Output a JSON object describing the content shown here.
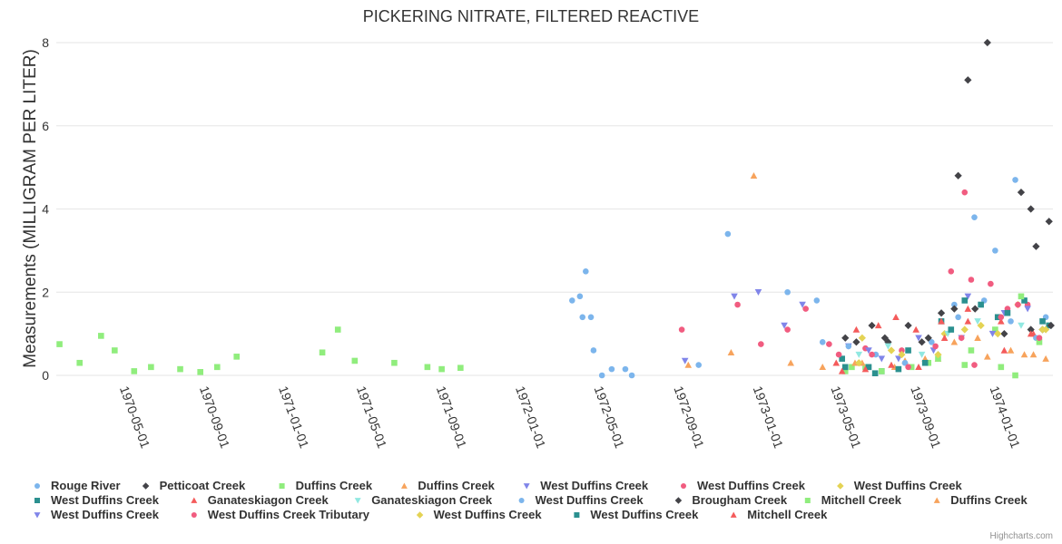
{
  "chart_data": {
    "type": "scatter",
    "title": "PICKERING NITRATE, FILTERED REACTIVE",
    "ylabel": "Measurements (MILLIGRAM PER LITER)",
    "xlabel": "",
    "ylim": [
      0,
      8
    ],
    "yticks": [
      "0",
      "2",
      "4",
      "6",
      "8"
    ],
    "xlim": [
      "1970-01-15",
      "1974-03-31"
    ],
    "xticks": [
      "1970-05-01",
      "1970-09-01",
      "1971-01-01",
      "1971-05-01",
      "1971-09-01",
      "1972-01-01",
      "1972-05-01",
      "1972-09-01",
      "1973-01-01",
      "1973-05-01",
      "1973-09-01",
      "1974-01-01"
    ],
    "credits": "Highcharts.com",
    "series": [
      {
        "name": "Rouge River",
        "color": "#7cb5ec",
        "symbol": "circle",
        "points": [
          [
            "1972-03-20",
            1.8
          ],
          [
            "1972-04-01",
            1.9
          ],
          [
            "1972-04-05",
            1.4
          ],
          [
            "1972-04-10",
            2.5
          ],
          [
            "1972-04-18",
            1.4
          ],
          [
            "1972-04-22",
            0.6
          ],
          [
            "1972-05-05",
            0.0
          ],
          [
            "1972-05-20",
            0.15
          ],
          [
            "1972-06-10",
            0.15
          ],
          [
            "1972-06-20",
            0.0
          ],
          [
            "1972-10-01",
            0.25
          ],
          [
            "1972-11-15",
            3.4
          ],
          [
            "1973-02-15",
            2.0
          ],
          [
            "1973-04-01",
            1.8
          ],
          [
            "1973-04-10",
            0.8
          ],
          [
            "1973-10-30",
            1.7
          ],
          [
            "1973-11-30",
            3.8
          ],
          [
            "1974-01-01",
            3.0
          ],
          [
            "1974-02-01",
            4.7
          ],
          [
            "1974-03-20",
            1.4
          ]
        ]
      },
      {
        "name": "Petticoat Creek",
        "color": "#434348",
        "symbol": "diamond",
        "points": [
          [
            "1973-05-15",
            0.9
          ],
          [
            "1973-06-25",
            1.2
          ],
          [
            "1973-07-20",
            0.8
          ],
          [
            "1973-08-20",
            1.2
          ],
          [
            "1973-09-10",
            0.8
          ],
          [
            "1973-10-10",
            1.5
          ],
          [
            "1973-11-05",
            4.8
          ],
          [
            "1973-11-20",
            7.1
          ],
          [
            "1973-12-20",
            8.0
          ],
          [
            "1974-02-10",
            4.4
          ],
          [
            "1974-02-25",
            4.0
          ],
          [
            "1974-03-05",
            3.1
          ],
          [
            "1974-03-25",
            3.7
          ],
          [
            "1974-03-15",
            1.1
          ]
        ]
      },
      {
        "name": "Duffins Creek",
        "color": "#90ed7d",
        "symbol": "square",
        "points": [
          [
            "1970-01-20",
            0.75
          ],
          [
            "1970-02-20",
            0.3
          ],
          [
            "1970-03-25",
            0.95
          ],
          [
            "1970-04-15",
            0.6
          ],
          [
            "1970-05-15",
            0.1
          ],
          [
            "1970-06-10",
            0.2
          ],
          [
            "1970-07-25",
            0.15
          ],
          [
            "1970-08-25",
            0.08
          ],
          [
            "1970-09-20",
            0.2
          ],
          [
            "1970-10-20",
            0.45
          ],
          [
            "1971-03-01",
            0.55
          ],
          [
            "1971-03-25",
            1.1
          ],
          [
            "1971-04-20",
            0.35
          ],
          [
            "1971-06-20",
            0.3
          ],
          [
            "1971-08-10",
            0.2
          ],
          [
            "1971-09-01",
            0.15
          ],
          [
            "1971-09-30",
            0.18
          ],
          [
            "1973-05-15",
            0.1
          ],
          [
            "1973-06-15",
            0.2
          ],
          [
            "1973-09-20",
            0.3
          ],
          [
            "1973-11-15",
            0.25
          ],
          [
            "1974-01-10",
            0.2
          ],
          [
            "1974-02-01",
            0.0
          ]
        ]
      },
      {
        "name": "Duffins Creek",
        "color": "#f7a35c",
        "symbol": "triangle",
        "points": [
          [
            "1972-09-15",
            0.25
          ],
          [
            "1972-11-20",
            0.55
          ],
          [
            "1972-12-25",
            4.8
          ],
          [
            "1973-02-20",
            0.3
          ],
          [
            "1973-04-10",
            0.2
          ],
          [
            "1973-06-10",
            0.3
          ],
          [
            "1973-08-15",
            0.35
          ],
          [
            "1973-10-05",
            0.4
          ],
          [
            "1973-12-20",
            0.45
          ],
          [
            "1974-02-15",
            0.5
          ],
          [
            "1974-03-20",
            0.4
          ]
        ]
      },
      {
        "name": "West Duffins Creek",
        "color": "#8085e9",
        "symbol": "triangle-down",
        "points": [
          [
            "1972-09-10",
            0.35
          ],
          [
            "1972-11-25",
            1.9
          ],
          [
            "1973-01-01",
            2.0
          ],
          [
            "1973-02-10",
            1.2
          ],
          [
            "1973-03-10",
            1.7
          ],
          [
            "1973-05-20",
            0.7
          ],
          [
            "1973-07-10",
            0.4
          ],
          [
            "1973-09-05",
            0.9
          ],
          [
            "1973-11-20",
            1.9
          ],
          [
            "1974-01-15",
            1.5
          ]
        ]
      },
      {
        "name": "West Duffins Creek",
        "color": "#f15c80",
        "symbol": "circle",
        "points": [
          [
            "1972-09-05",
            1.1
          ],
          [
            "1972-11-30",
            1.7
          ],
          [
            "1973-01-05",
            0.75
          ],
          [
            "1973-02-15",
            1.1
          ],
          [
            "1973-03-15",
            1.6
          ],
          [
            "1973-04-20",
            0.75
          ],
          [
            "1973-06-15",
            0.65
          ],
          [
            "1973-08-10",
            0.6
          ],
          [
            "1973-10-25",
            2.5
          ],
          [
            "1973-11-15",
            4.4
          ],
          [
            "1973-11-25",
            2.3
          ],
          [
            "1973-12-25",
            2.2
          ],
          [
            "1974-01-20",
            1.6
          ],
          [
            "1974-02-20",
            1.7
          ]
        ]
      },
      {
        "name": "West Duffins Creek",
        "color": "#e4d354",
        "symbol": "diamond",
        "points": [
          [
            "1973-06-10",
            0.9
          ],
          [
            "1973-07-25",
            0.6
          ],
          [
            "1973-10-15",
            1.0
          ],
          [
            "1973-12-10",
            1.2
          ],
          [
            "1974-02-05",
            1.7
          ],
          [
            "1974-03-15",
            1.1
          ]
        ]
      },
      {
        "name": "West Duffins Creek",
        "color": "#2b908f",
        "symbol": "square",
        "points": [
          [
            "1973-05-10",
            0.4
          ],
          [
            "1973-06-20",
            0.2
          ],
          [
            "1973-07-10",
            0.1
          ],
          [
            "1973-08-20",
            0.6
          ],
          [
            "1973-10-10",
            1.3
          ],
          [
            "1973-11-15",
            1.8
          ],
          [
            "1974-01-05",
            1.4
          ],
          [
            "1974-02-15",
            1.8
          ],
          [
            "1974-03-25",
            1.2
          ]
        ]
      },
      {
        "name": "Ganateskiagon Creek",
        "color": "#f45b5b",
        "symbol": "triangle",
        "points": [
          [
            "1973-05-01",
            0.3
          ],
          [
            "1973-06-01",
            1.1
          ],
          [
            "1973-07-05",
            1.2
          ],
          [
            "1973-08-01",
            1.4
          ],
          [
            "1973-09-01",
            1.1
          ],
          [
            "1973-10-10",
            1.3
          ],
          [
            "1973-11-20",
            1.6
          ],
          [
            "1974-01-10",
            1.3
          ],
          [
            "1974-03-01",
            1.0
          ]
        ]
      },
      {
        "name": "Ganateskiagon Creek",
        "color": "#91e8e1",
        "symbol": "triangle-down",
        "points": [
          [
            "1973-06-05",
            0.5
          ],
          [
            "1973-07-20",
            0.7
          ],
          [
            "1973-09-10",
            0.5
          ],
          [
            "1973-10-20",
            1.0
          ],
          [
            "1973-12-05",
            1.3
          ],
          [
            "1974-02-10",
            1.2
          ]
        ]
      },
      {
        "name": "West Duffins Creek",
        "color": "#7cb5ec",
        "symbol": "circle",
        "points": [
          [
            "1973-05-20",
            0.7
          ],
          [
            "1973-07-01",
            0.5
          ],
          [
            "1973-08-15",
            0.3
          ],
          [
            "1973-09-25",
            0.8
          ],
          [
            "1973-11-05",
            1.4
          ],
          [
            "1973-12-15",
            1.8
          ],
          [
            "1974-01-25",
            1.3
          ],
          [
            "1974-03-05",
            0.9
          ]
        ]
      },
      {
        "name": "Brougham Creek",
        "color": "#434348",
        "symbol": "diamond",
        "points": [
          [
            "1973-06-01",
            0.8
          ],
          [
            "1973-07-15",
            0.9
          ],
          [
            "1973-09-20",
            0.9
          ],
          [
            "1973-10-30",
            1.6
          ],
          [
            "1973-12-01",
            1.6
          ],
          [
            "1974-01-15",
            1.0
          ],
          [
            "1974-02-25",
            1.1
          ],
          [
            "1974-03-28",
            1.2
          ]
        ]
      },
      {
        "name": "Mitchell Creek",
        "color": "#90ed7d",
        "symbol": "square",
        "points": [
          [
            "1973-05-25",
            0.2
          ],
          [
            "1973-07-10",
            0.1
          ],
          [
            "1973-08-25",
            0.2
          ],
          [
            "1973-10-05",
            0.4
          ],
          [
            "1973-11-25",
            0.6
          ],
          [
            "1974-01-01",
            1.1
          ],
          [
            "1974-02-10",
            1.9
          ],
          [
            "1974-03-10",
            0.8
          ]
        ]
      },
      {
        "name": "Duffins Creek",
        "color": "#f7a35c",
        "symbol": "triangle",
        "points": [
          [
            "1973-05-30",
            0.3
          ],
          [
            "1973-07-30",
            0.2
          ],
          [
            "1973-09-15",
            0.4
          ],
          [
            "1973-10-30",
            0.8
          ],
          [
            "1973-12-05",
            0.9
          ],
          [
            "1974-01-25",
            0.6
          ],
          [
            "1974-03-01",
            0.5
          ]
        ]
      },
      {
        "name": "West Duffins Creek",
        "color": "#8085e9",
        "symbol": "triangle-down",
        "points": [
          [
            "1973-06-20",
            0.6
          ],
          [
            "1973-08-05",
            0.4
          ],
          [
            "1973-09-28",
            0.6
          ],
          [
            "1973-11-10",
            0.9
          ],
          [
            "1973-12-28",
            1.0
          ],
          [
            "1974-02-20",
            1.6
          ]
        ]
      },
      {
        "name": "West Duffins Creek Tributary",
        "color": "#f15c80",
        "symbol": "circle",
        "points": [
          [
            "1973-05-05",
            0.5
          ],
          [
            "1973-06-25",
            0.5
          ],
          [
            "1973-08-20",
            0.2
          ],
          [
            "1973-10-01",
            0.7
          ],
          [
            "1973-11-10",
            0.9
          ],
          [
            "1973-11-30",
            0.25
          ],
          [
            "1974-01-10",
            1.4
          ],
          [
            "1974-02-05",
            1.7
          ],
          [
            "1974-03-10",
            0.9
          ]
        ]
      },
      {
        "name": "West Duffins Creek",
        "color": "#e4d354",
        "symbol": "diamond",
        "points": [
          [
            "1973-06-05",
            0.3
          ],
          [
            "1973-08-10",
            0.5
          ],
          [
            "1973-10-05",
            0.5
          ],
          [
            "1973-11-15",
            1.1
          ],
          [
            "1974-01-05",
            1.0
          ],
          [
            "1974-03-20",
            1.1
          ]
        ]
      },
      {
        "name": "West Duffins Creek",
        "color": "#2b908f",
        "symbol": "square",
        "points": [
          [
            "1973-05-15",
            0.2
          ],
          [
            "1973-06-30",
            0.05
          ],
          [
            "1973-08-05",
            0.15
          ],
          [
            "1973-09-15",
            0.3
          ],
          [
            "1973-10-25",
            1.1
          ],
          [
            "1973-12-10",
            1.7
          ],
          [
            "1974-01-20",
            1.5
          ],
          [
            "1974-03-15",
            1.3
          ]
        ]
      },
      {
        "name": "Mitchell Creek",
        "color": "#f45b5b",
        "symbol": "triangle",
        "points": [
          [
            "1973-05-10",
            0.1
          ],
          [
            "1973-06-15",
            0.15
          ],
          [
            "1973-07-25",
            0.25
          ],
          [
            "1973-09-05",
            0.2
          ],
          [
            "1973-10-15",
            0.9
          ],
          [
            "1973-11-20",
            1.3
          ],
          [
            "1974-01-15",
            0.6
          ],
          [
            "1974-02-25",
            1.0
          ]
        ]
      }
    ]
  }
}
